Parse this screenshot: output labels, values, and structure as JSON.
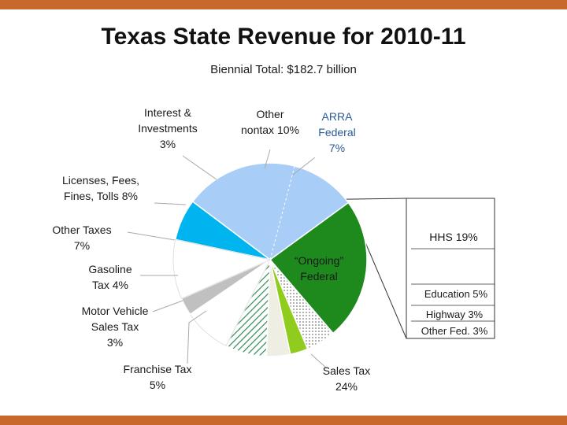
{
  "title": "Texas State Revenue for 2010-11",
  "subtitle": "Biennial Total: $182.7 billion",
  "colors": {
    "accent_bar": "#c8682a"
  },
  "chart_data": {
    "type": "pie",
    "title": "Texas State Revenue for 2010-11",
    "subtitle": "Biennial Total: $182.7 billion",
    "unit": "%",
    "slices": [
      {
        "label": "ARRA Federal",
        "display": [
          "ARRA",
          "Federal",
          "7%"
        ],
        "value": 7,
        "color": "#00b4f0"
      },
      {
        "label": "“Ongoing” Federal",
        "display": [
          "“Ongoing”",
          "Federal"
        ],
        "value": 30,
        "color": "#a8cdf6",
        "detail": [
          {
            "label": "HHS",
            "display": [
              "HHS 19%"
            ],
            "value": 19
          },
          {
            "label": "Education",
            "display": [
              "Education 5%"
            ],
            "value": 5
          },
          {
            "label": "Highway",
            "display": [
              "Highway 3%"
            ],
            "value": 3
          },
          {
            "label": "Other Fed.",
            "display": [
              "Other Fed. 3%"
            ],
            "value": 3
          }
        ]
      },
      {
        "label": "Sales Tax",
        "display": [
          "Sales Tax",
          "24%"
        ],
        "value": 24,
        "color": "#1e8a1e"
      },
      {
        "label": "Franchise Tax",
        "display": [
          "Franchise Tax",
          "5%"
        ],
        "value": 5,
        "color": "#ffffff",
        "pattern": "dots"
      },
      {
        "label": "Motor Vehicle Sales Tax",
        "display": [
          "Motor Vehicle",
          "Sales  Tax",
          "3%"
        ],
        "value": 3,
        "color": "#8fcc1e"
      },
      {
        "label": "Gasoline Tax",
        "display": [
          "Gasoline",
          "Tax 4%"
        ],
        "value": 4,
        "color": "#eeeee2"
      },
      {
        "label": "Other Taxes",
        "display": [
          "Other Taxes",
          "7%"
        ],
        "value": 7,
        "color": "#ffffff",
        "pattern": "hatch"
      },
      {
        "label": "Licenses, Fees, Fines, Tolls",
        "display": [
          "Licenses, Fees,",
          "Fines, Tolls 8%"
        ],
        "value": 8,
        "color": "#ffffff"
      },
      {
        "label": "Interest & Investments",
        "display": [
          "Interest &",
          "Investments",
          "3%"
        ],
        "value": 3,
        "color": "#c0c0c0"
      },
      {
        "label": "Other nontax",
        "display": [
          "Other",
          "nontax 10%"
        ],
        "value": 10,
        "color": "#ffffff"
      }
    ]
  }
}
